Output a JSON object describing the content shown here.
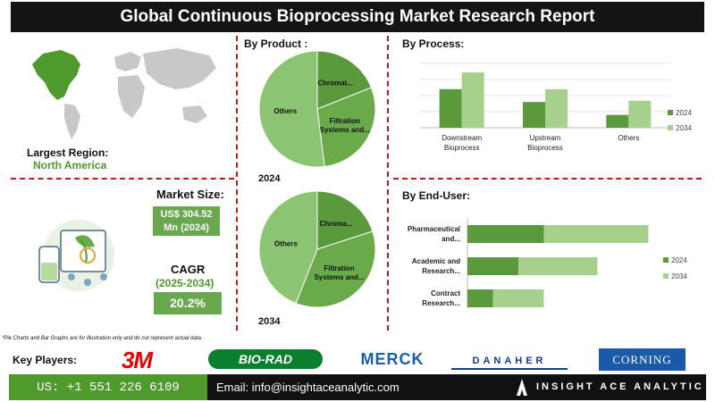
{
  "title": "Global Continuous Bioprocessing Market Research Report",
  "region": {
    "label": "Largest Region:",
    "value": "North America"
  },
  "market_size": {
    "label": "Market Size:",
    "value_line1": "US$ 304.52",
    "value_line2": "Mn (2024)"
  },
  "cagr": {
    "label": "CAGR",
    "period": "(2025-2034)",
    "value": "20.2%"
  },
  "product": {
    "heading": "By Product :",
    "year_2024": "2024",
    "year_2034": "2034"
  },
  "process": {
    "heading": "By  Process:"
  },
  "enduser": {
    "heading": "By End-User:"
  },
  "disclaimer": "*Pie Charts and Bar Graphs are for illustration only and do not represent actual data.",
  "key_players": {
    "label": "Key Players:",
    "logos": [
      "3M",
      "BIO-RAD",
      "MERCK",
      "DANAHER",
      "CORNING"
    ]
  },
  "footer": {
    "phone": "US: +1 551 226 6109",
    "email": "Email: info@insightaceanalytic.com",
    "brand": "INSIGHT ACE ANALYTIC"
  },
  "colors": {
    "dark": "#5b9a3c",
    "light": "#a7d08c",
    "mid": "#7db85a",
    "accent_red": "#b81c1c"
  },
  "chart_data": [
    {
      "type": "pie",
      "title": "By Product :",
      "label": "2024",
      "slices": [
        {
          "label": "Others",
          "value": 52,
          "color": "#8bc472"
        },
        {
          "label": "Chromat...",
          "value": 19,
          "color": "#5b9a3c"
        },
        {
          "label": "Filtration Systems and...",
          "value": 29,
          "color": "#6aaa4a"
        }
      ]
    },
    {
      "type": "pie",
      "title": "By Product :",
      "label": "2034",
      "slices": [
        {
          "label": "Others",
          "value": 44,
          "color": "#8bc472"
        },
        {
          "label": "Chroma...",
          "value": 20,
          "color": "#5b9a3c"
        },
        {
          "label": "Filtration Systems and...",
          "value": 36,
          "color": "#6aaa4a"
        }
      ]
    },
    {
      "type": "bar",
      "title": "By  Process:",
      "categories": [
        "Downstream Bioprocess",
        "Upstream Bioprocess",
        "Others"
      ],
      "series": [
        {
          "name": "2024",
          "values": [
            3.0,
            2.0,
            1.0
          ]
        },
        {
          "name": "2034",
          "values": [
            4.3,
            3.0,
            2.1
          ]
        }
      ],
      "ylim": [
        0,
        5
      ],
      "legend": "right"
    },
    {
      "type": "bar",
      "orientation": "horizontal",
      "stacked": true,
      "title": "By End-User:",
      "categories": [
        "Pharmaceutical and...",
        "Academic and Research...",
        "Contract Research..."
      ],
      "series": [
        {
          "name": "2024",
          "values": [
            3.0,
            2.0,
            1.0
          ]
        },
        {
          "name": "2034",
          "values": [
            4.1,
            3.1,
            2.0
          ]
        }
      ],
      "xlim": [
        0,
        8
      ],
      "legend": "right"
    }
  ]
}
